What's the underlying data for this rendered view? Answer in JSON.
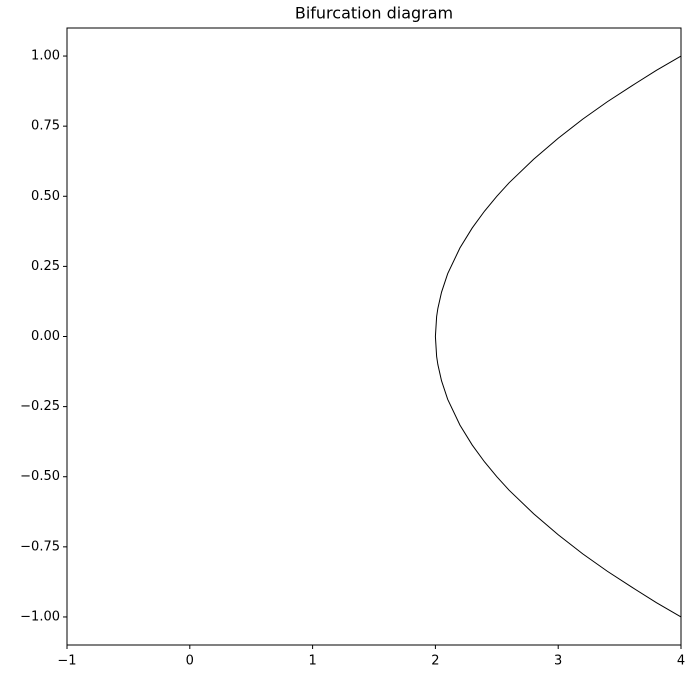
{
  "chart_data": {
    "type": "line",
    "title": "Bifurcation diagram",
    "x": [
      2,
      2.01,
      2.02,
      2.05,
      2.1,
      2.2,
      2.3,
      2.4,
      2.5,
      2.6,
      2.8,
      3.0,
      3.2,
      3.4,
      3.6,
      3.8,
      4.0
    ],
    "series": [
      {
        "color": "#000000",
        "values": [
          0,
          0.071,
          0.1,
          0.158,
          0.224,
          0.316,
          0.387,
          0.447,
          0.5,
          0.548,
          0.632,
          0.707,
          0.775,
          0.837,
          0.894,
          0.949,
          1.0
        ]
      },
      {
        "color": "#000000",
        "values": [
          0,
          -0.071,
          -0.1,
          -0.158,
          -0.224,
          -0.316,
          -0.387,
          -0.447,
          -0.5,
          -0.548,
          -0.632,
          -0.707,
          -0.775,
          -0.837,
          -0.894,
          -0.949,
          -1.0
        ]
      }
    ],
    "xlim": [
      -1,
      4
    ],
    "xticks": [
      {
        "value": -1,
        "label": "−1"
      },
      0,
      1,
      2,
      3,
      4
    ],
    "ylim": [
      -1.1,
      1.1
    ],
    "yticks": [
      {
        "value": 1,
        "label": "1.00"
      },
      {
        "value": 0.75,
        "label": "0.75"
      },
      {
        "value": 0.5,
        "label": "0.50"
      },
      {
        "value": 0.25,
        "label": "0.25"
      },
      {
        "value": 0,
        "label": "0.00"
      },
      {
        "value": -0.25,
        "label": "−0.25"
      },
      {
        "value": -0.5,
        "label": "−0.50"
      },
      {
        "value": -0.75,
        "label": "−0.75"
      },
      {
        "value": -1,
        "label": "−1.00"
      }
    ],
    "grid": false
  }
}
